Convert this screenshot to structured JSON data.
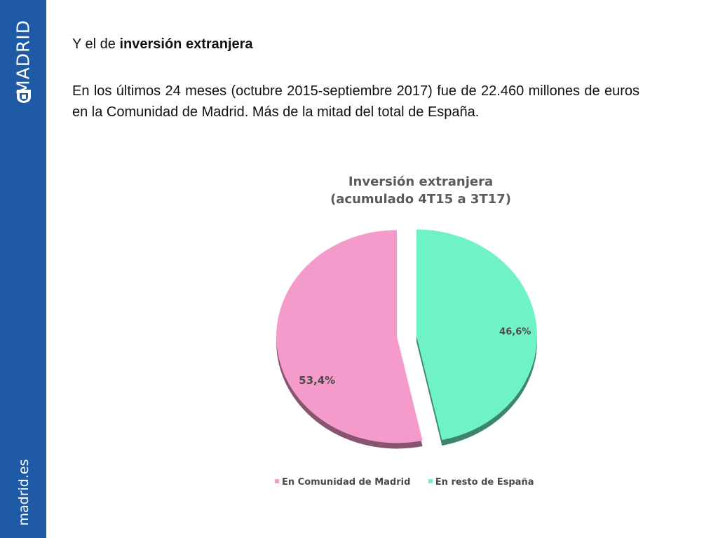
{
  "brand": {
    "name": "MADRID",
    "url": "madrid.es",
    "color": "#1f5aa6"
  },
  "heading": {
    "prefix": "Y el de ",
    "bold": "inversión extranjera"
  },
  "paragraph": "En los últimos 24 meses (octubre 2015-septiembre 2017) fue de 22.460 millones de euros en la Comunidad de Madrid. Más de la mitad del total de España.",
  "chart_data": {
    "type": "pie",
    "title_line1": "Inversión extranjera",
    "title_line2": "(acumulado 4T15 a 3T17)",
    "legend_position": "bottom",
    "slices": [
      {
        "label": "En Comunidad de Madrid",
        "value": 53.4,
        "display": "53,4%",
        "color": "#f59bcb"
      },
      {
        "label": "En resto de España",
        "value": 46.6,
        "display": "46,6%",
        "color": "#6ff2c8"
      }
    ]
  }
}
